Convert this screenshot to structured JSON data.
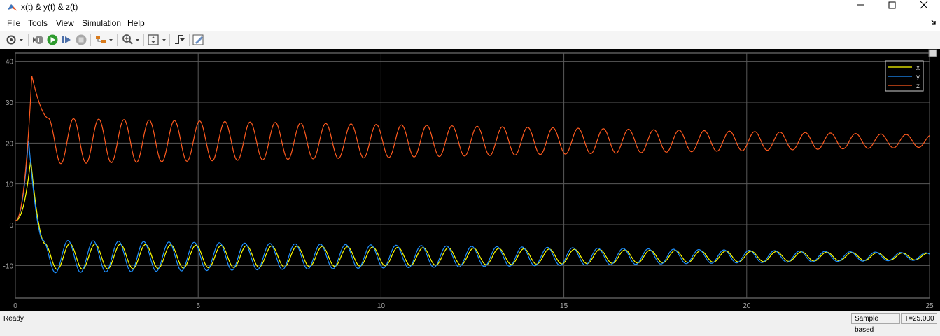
{
  "window": {
    "title": "x(t) & y(t) & z(t)"
  },
  "menu": {
    "items": [
      "File",
      "Tools",
      "View",
      "Simulation",
      "Help"
    ]
  },
  "status": {
    "left": "Ready",
    "mode": "Sample based",
    "time": "T=25.000"
  },
  "colors": {
    "background": "#000000",
    "grid": "#5a5a5a",
    "axis_text": "#a9a9a9"
  },
  "chart_data": {
    "type": "line",
    "xlim": [
      0,
      25
    ],
    "ylim": [
      -18,
      42
    ],
    "xticks": [
      0,
      5,
      10,
      15,
      20,
      25
    ],
    "yticks": [
      -10,
      0,
      10,
      20,
      30,
      40
    ],
    "grid": true,
    "legend_position": "top-right",
    "series": [
      {
        "name": "x",
        "color": "#ffff00",
        "description_values": {
          "initial": 1,
          "peak_t": 0.42,
          "peak": 16,
          "settle_center": -7.8,
          "osc_period": 0.69,
          "amp_start": 3.2,
          "amp_end": 0.8,
          "t_start_osc": 0.8
        }
      },
      {
        "name": "y",
        "color": "#1e90ff",
        "description_values": {
          "initial": 1,
          "peak_t": 0.36,
          "peak": 21,
          "settle_center": -7.8,
          "osc_period": 0.69,
          "amp_start": 4.0,
          "amp_end": 0.9,
          "t_start_osc": 0.75
        }
      },
      {
        "name": "z",
        "color": "#ff5a1e",
        "description_values": {
          "initial": 1,
          "peak_t": 0.45,
          "peak": 36.5,
          "settle_center": 20.5,
          "osc_period": 0.69,
          "amp_start": 5.6,
          "amp_end": 1.5,
          "t_start_osc": 0.9
        }
      }
    ]
  }
}
